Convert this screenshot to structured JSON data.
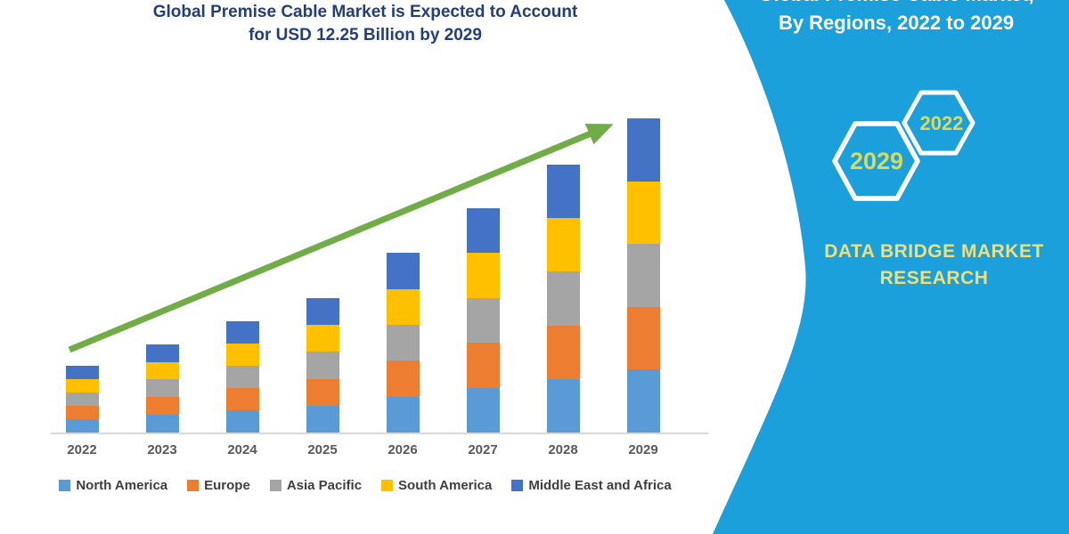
{
  "left": {
    "title_line1": "Global Premise Cable Market is Expected to Account",
    "title_line2": "for USD 12.25 Billion by 2029",
    "title_color": "#233E7F"
  },
  "chart_data": {
    "type": "bar",
    "stacked": true,
    "title": "Global Premise Cable Market is Expected to Account for USD 12.25 Billion by 2029",
    "unit": "USD Billion",
    "categories": [
      "2022",
      "2023",
      "2024",
      "2025",
      "2026",
      "2027",
      "2028",
      "2029"
    ],
    "series": [
      {
        "name": "North America",
        "color": "#5B9BD5",
        "values": [
          0.52,
          0.69,
          0.87,
          1.05,
          1.4,
          1.75,
          2.09,
          2.45
        ]
      },
      {
        "name": "Europe",
        "color": "#ED7D31",
        "values": [
          0.52,
          0.69,
          0.87,
          1.05,
          1.4,
          1.75,
          2.09,
          2.45
        ]
      },
      {
        "name": "Asia Pacific",
        "color": "#A5A5A5",
        "values": [
          0.52,
          0.69,
          0.87,
          1.05,
          1.4,
          1.75,
          2.09,
          2.45
        ]
      },
      {
        "name": "South America",
        "color": "#FFC000",
        "values": [
          0.52,
          0.69,
          0.87,
          1.05,
          1.4,
          1.75,
          2.09,
          2.45
        ]
      },
      {
        "name": "Middle East and Africa",
        "color": "#4472C4",
        "values": [
          0.52,
          0.69,
          0.87,
          1.05,
          1.4,
          1.75,
          2.09,
          2.45
        ]
      }
    ],
    "totals": [
      2.6,
      3.45,
      4.35,
      5.25,
      7.0,
      8.75,
      10.45,
      12.25
    ],
    "ylim": [
      0,
      12.25
    ],
    "grid": false,
    "y_axis_labels": false,
    "legend_position": "bottom",
    "trend_arrow": true,
    "trend_arrow_color": "#70AD47",
    "axis_color": "#D9D9D9",
    "tick_label_color": "#595959"
  },
  "right_panel": {
    "bg_color": "#1CA0DC",
    "title_line1": "Global Premise Cable Market,",
    "title_line2": "By Regions, 2022 to 2029",
    "hexagons": [
      {
        "label": "2029"
      },
      {
        "label": "2022"
      }
    ],
    "hexagon_outline_color": "#ffffff",
    "hexagon_label_color": "#D8DA5C",
    "brand_line1": "DATA BRIDGE MARKET",
    "brand_line2": "RESEARCH",
    "brand_color": "#EDE07C"
  }
}
